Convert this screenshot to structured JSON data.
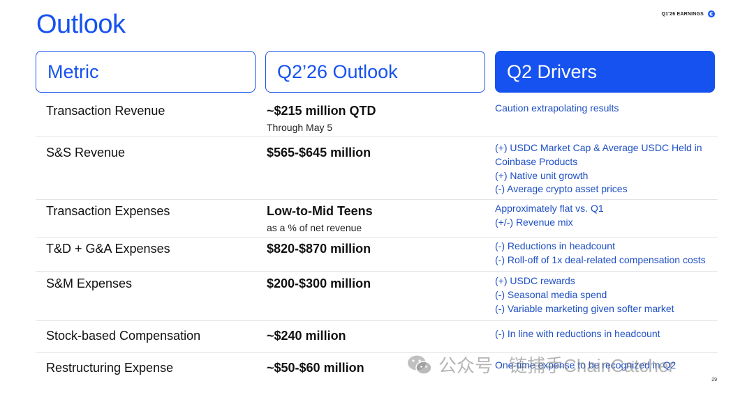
{
  "page": {
    "title": "Outlook",
    "label": "Q1'26 EARNINGS",
    "page_number": "29",
    "watermark": "公众号 · 链捕手ChainCatcher"
  },
  "headers": {
    "metric": "Metric",
    "outlook": "Q2’26 Outlook",
    "drivers": "Q2 Drivers"
  },
  "rows": [
    {
      "metric": "Transaction Revenue",
      "outlook": "~$215 million QTD",
      "outlook_sub": "Through May 5",
      "drivers": [
        "Caution extrapolating results"
      ]
    },
    {
      "metric": "S&S Revenue",
      "outlook": "$565-$645 million",
      "outlook_sub": "",
      "drivers": [
        "(+) USDC Market Cap & Average USDC Held in",
        "Coinbase Products",
        "(+) Native unit growth",
        "(-) Average crypto asset prices"
      ]
    },
    {
      "metric": "Transaction Expenses",
      "outlook": "Low-to-Mid Teens",
      "outlook_sub": "as a % of net revenue",
      "drivers": [
        "Approximately flat vs. Q1",
        "(+/-) Revenue mix"
      ]
    },
    {
      "metric": "T&D + G&A Expenses",
      "outlook": "$820-$870 million",
      "outlook_sub": "",
      "drivers": [
        "(-) Reductions in headcount",
        "(-) Roll-off of 1x deal-related compensation costs"
      ]
    },
    {
      "metric": "S&M Expenses",
      "outlook": "$200-$300 million",
      "outlook_sub": "",
      "drivers": [
        "(+) USDC rewards",
        "(-) Seasonal media spend",
        "(-) Variable marketing given softer market"
      ]
    },
    {
      "metric": "Stock-based Compensation",
      "outlook": "~$240 million",
      "outlook_sub": "",
      "drivers": [
        "(-) In line with reductions in headcount"
      ]
    },
    {
      "metric": "Restructuring Expense",
      "outlook": "~$50-$60 million",
      "outlook_sub": "",
      "drivers": [
        "One-time expense to be recognized in Q2"
      ]
    }
  ],
  "colors": {
    "accent": "#1652f0",
    "driver_text": "#1e4fc4",
    "divider": "#e2e4e8"
  }
}
